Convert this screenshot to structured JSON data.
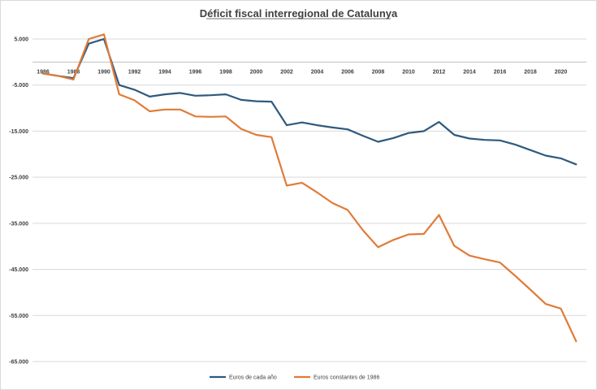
{
  "chart_data": {
    "type": "line",
    "title": "Déficit fiscal interregional de Catalunya",
    "xlabel": "",
    "ylabel": "",
    "ylim": [
      -65000,
      5000
    ],
    "xlim": [
      1986,
      2021
    ],
    "yticks": [
      5000,
      -5000,
      -15000,
      -25000,
      -35000,
      -45000,
      -55000,
      -65000
    ],
    "ytick_labels": [
      "5.000",
      "-5.000",
      "-15.000",
      "-25.000",
      "-35.000",
      "-45.000",
      "-55.000",
      "-65.000"
    ],
    "xticks": [
      "1986",
      "1988",
      "1990",
      "1992",
      "1994",
      "1996",
      "1998",
      "2000",
      "2002",
      "2004",
      "2006",
      "2008",
      "2010",
      "2012",
      "2014",
      "2016",
      "2018",
      "2020"
    ],
    "grid": true,
    "legend_position": "bottom",
    "x": [
      1986,
      1987,
      1988,
      1989,
      1990,
      1991,
      1992,
      1993,
      1994,
      1995,
      1996,
      1997,
      1998,
      1999,
      2000,
      2001,
      2002,
      2003,
      2004,
      2005,
      2006,
      2007,
      2008,
      2009,
      2010,
      2011,
      2012,
      2013,
      2014,
      2015,
      2016,
      2017,
      2018,
      2019,
      2020,
      2021
    ],
    "series": [
      {
        "name": "Euros de cada año",
        "color": "#2e5a7e",
        "values": [
          -2500,
          -3000,
          -3500,
          4000,
          5000,
          -5000,
          -6000,
          -7500,
          -7000,
          -6700,
          -7300,
          -7200,
          -7000,
          -8200,
          -8500,
          -8600,
          -13700,
          -13100,
          -13700,
          -14200,
          -14600,
          -16000,
          -17300,
          -16500,
          -15400,
          -15000,
          -13000,
          -15800,
          -16600,
          -16900,
          -17000,
          -17900,
          -19100,
          -20300,
          -20900,
          -22200
        ]
      },
      {
        "name": "Euros constantes de 1986",
        "color": "#e07b39",
        "values": [
          -2500,
          -3000,
          -3800,
          5000,
          6000,
          -7000,
          -8300,
          -10700,
          -10300,
          -10300,
          -11800,
          -11900,
          -11800,
          -14500,
          -15800,
          -16300,
          -26800,
          -26200,
          -28300,
          -30600,
          -32100,
          -36500,
          -40200,
          -38600,
          -37400,
          -37300,
          -33200,
          -39900,
          -42000,
          -42800,
          -43500,
          -46400,
          -49400,
          -52500,
          -53500,
          -60600
        ]
      }
    ]
  }
}
